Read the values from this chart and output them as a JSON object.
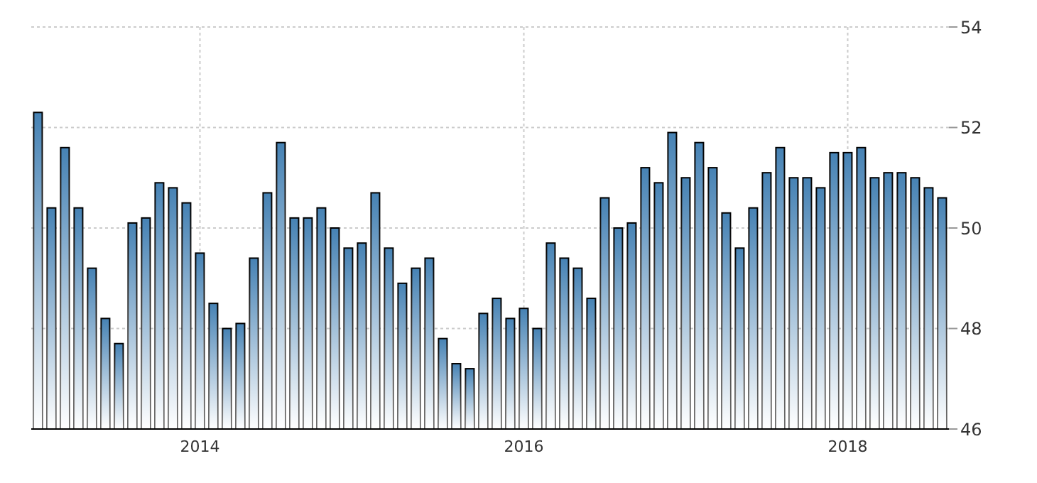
{
  "chart_data": {
    "type": "bar",
    "categories": [
      null,
      null,
      null,
      null,
      null,
      null,
      null,
      null,
      null,
      null,
      null,
      null,
      "2014",
      null,
      null,
      null,
      null,
      null,
      null,
      null,
      null,
      null,
      null,
      null,
      null,
      null,
      null,
      null,
      null,
      null,
      null,
      null,
      null,
      null,
      null,
      null,
      "2016",
      null,
      null,
      null,
      null,
      null,
      null,
      null,
      null,
      null,
      null,
      null,
      null,
      null,
      null,
      null,
      null,
      null,
      null,
      null,
      null,
      null,
      null,
      null,
      "2018",
      null,
      null,
      null,
      null,
      null,
      null,
      null
    ],
    "values": [
      52.3,
      50.4,
      51.6,
      50.4,
      49.2,
      48.2,
      47.7,
      50.1,
      50.2,
      50.9,
      50.8,
      50.5,
      49.5,
      48.5,
      48.0,
      48.1,
      49.4,
      50.7,
      51.7,
      50.2,
      50.2,
      50.4,
      50.0,
      49.6,
      49.7,
      50.7,
      49.6,
      48.9,
      49.2,
      49.4,
      47.8,
      47.3,
      47.2,
      48.3,
      48.6,
      48.2,
      48.4,
      48.0,
      49.7,
      49.4,
      49.2,
      48.6,
      50.6,
      50.0,
      50.1,
      51.2,
      50.9,
      51.9,
      51.0,
      51.7,
      51.2,
      50.3,
      49.6,
      50.4,
      51.1,
      51.6,
      51.0,
      51.0,
      50.8,
      51.5,
      51.5,
      51.6,
      51.0,
      51.1,
      51.1,
      51.0,
      50.8,
      50.6
    ],
    "color": "#4682b4",
    "ylim": [
      46,
      54
    ],
    "yticks": [
      46,
      48,
      50,
      52,
      54
    ],
    "grid": true
  }
}
